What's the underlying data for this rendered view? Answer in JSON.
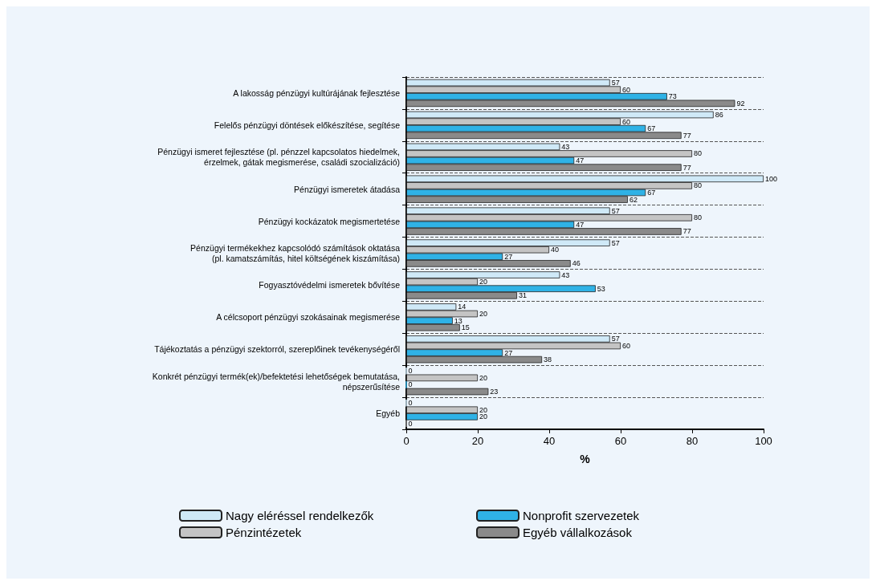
{
  "chart_data": {
    "type": "bar",
    "orientation": "horizontal",
    "xlabel": "%",
    "xlim": [
      0,
      100
    ],
    "xticks": [
      0,
      20,
      40,
      60,
      80,
      100
    ],
    "grid": "y",
    "legend": "bottom",
    "data_labels": true,
    "categories": [
      "A lakosság pénzügyi kultúrájának fejlesztése",
      "Felelős pénzügyi döntések előkészítése, segítése",
      "Pénzügyi ismeret fejlesztése (pl. pénzzel kapcsolatos hiedelmek,\nérzelmek, gátak megismerése, családi szocializáció)",
      "Pénzügyi ismeretek átadása",
      "Pénzügyi kockázatok megismertetése",
      "Pénzügyi termékekhez kapcsolódó számítások oktatása\n(pl. kamatszámítás, hitel költségének kiszámítása)",
      "Fogyasztóvédelmi ismeretek bővítése",
      "A célcsoport pénzügyi szokásainak megismerése",
      "Tájékoztatás a pénzügyi szektorról, szereplőinek tevékenységéről",
      "Konkrét pénzügyi termék(ek)/befektetési lehetőségek bemutatása,\nnépszerűsítése",
      "Egyéb"
    ],
    "series": [
      {
        "name": "Nagy eléréssel rendelkezők",
        "color": "#cfe9f7",
        "values": [
          57,
          86,
          43,
          100,
          57,
          57,
          43,
          14,
          57,
          0,
          0
        ]
      },
      {
        "name": "Pénzintézetek",
        "color": "#c4c4c4",
        "values": [
          60,
          60,
          80,
          80,
          80,
          40,
          20,
          20,
          60,
          20,
          20
        ]
      },
      {
        "name": "Nonprofit szervezetek",
        "color": "#2fb2e6",
        "values": [
          73,
          67,
          47,
          67,
          47,
          27,
          53,
          13,
          27,
          0,
          20
        ]
      },
      {
        "name": "Egyéb vállalkozások",
        "color": "#8a8a8a",
        "values": [
          92,
          77,
          77,
          62,
          77,
          46,
          31,
          15,
          38,
          23,
          0
        ]
      }
    ]
  }
}
